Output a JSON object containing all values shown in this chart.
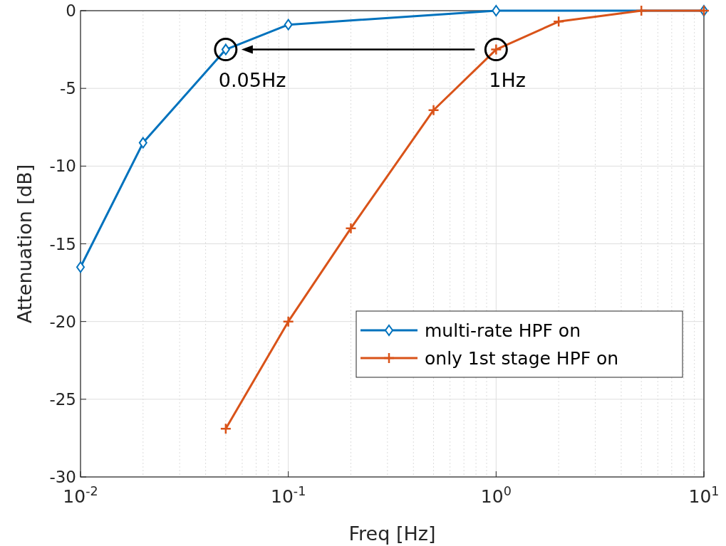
{
  "chart_data": {
    "type": "line",
    "xlabel": "Freq [Hz]",
    "ylabel": "Attenuation [dB]",
    "log": "x",
    "xlim": [
      0.01,
      10
    ],
    "xticks": [
      {
        "value": 0.01,
        "label": "10$^{-2}$"
      },
      {
        "value": 0.1,
        "label": "10$^{-1}$"
      },
      {
        "value": 1,
        "label": "10$^{0}$"
      },
      {
        "value": 10,
        "label": "10$^{1}$"
      }
    ],
    "ylim": [
      -30,
      0
    ],
    "yticks": [
      -30,
      -25,
      -20,
      -15,
      -10,
      -5,
      0
    ],
    "grid": true,
    "legend": "bottom right",
    "line_style": "solid",
    "series": [
      {
        "name": "multi-rate HPF on",
        "color": "#0072bd",
        "marker": "diamond",
        "x": [
          0.01,
          0.02,
          0.05,
          0.1,
          1,
          10
        ],
        "values": [
          -16.5,
          -8.5,
          -2.5,
          -0.9,
          0,
          0
        ]
      },
      {
        "name": "only 1st stage HPF on",
        "color": "#d95319",
        "marker": "cross",
        "x": [
          0.05,
          0.1,
          0.2,
          0.5,
          1,
          2,
          5,
          10
        ],
        "values": [
          -26.9,
          -20,
          -14,
          -6.4,
          -2.5,
          -0.7,
          0,
          0
        ]
      }
    ],
    "annotations": [
      {
        "text": "0.05Hz",
        "x": 0.05,
        "y": -2.5
      },
      {
        "text": "1Hz",
        "x": 1,
        "y": -2.5
      }
    ]
  }
}
